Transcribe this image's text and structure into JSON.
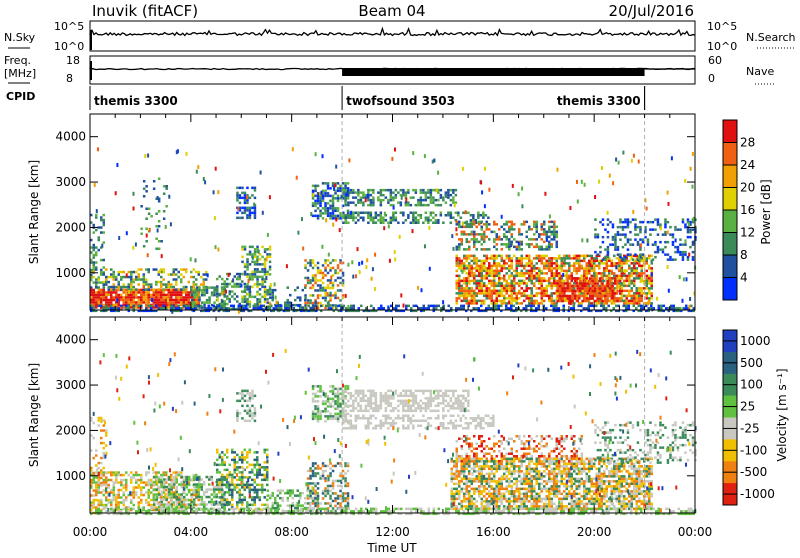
{
  "header": {
    "station": "Inuvik (fitACF)",
    "beam": "Beam 04",
    "date": "20/Jul/2016"
  },
  "top_panels": {
    "nsky_label": "N.Sky",
    "nsky_ticks": [
      "10^5",
      "10^0"
    ],
    "nsearch_label": "N.Search",
    "freq_label_1": "Freq.",
    "freq_label_2": "[MHz]",
    "freq_ticks": [
      "18",
      "8"
    ],
    "nave_label": "Nave",
    "nave_ticks": [
      "60",
      "0"
    ],
    "cpid_label": "CPID"
  },
  "cpid_segments": [
    {
      "label": "themis 3300",
      "start_hr": 0,
      "end_hr": 10
    },
    {
      "label": "twofsound 3503",
      "start_hr": 10,
      "end_hr": 22
    },
    {
      "label": "themis 3300",
      "start_hr": 22,
      "end_hr": 24
    }
  ],
  "chart_data": [
    {
      "type": "heatmap",
      "panel": "power",
      "ylabel": "Slant Range [km]",
      "ylim": [
        180,
        4500
      ],
      "yticks": [
        1000,
        2000,
        3000,
        4000
      ],
      "xlim": [
        0,
        24
      ],
      "colorbar_label": "Power [dB]",
      "colorbar_ticks": [
        "4",
        "8",
        "12",
        "16",
        "20",
        "24",
        "28"
      ],
      "colorbar_colors": [
        "#0030ff",
        "#2050a0",
        "#3a8a5a",
        "#5ab040",
        "#e0d000",
        "#f0a000",
        "#f06010",
        "#e01010"
      ]
    },
    {
      "type": "heatmap",
      "panel": "velocity",
      "ylabel": "Slant Range [km]",
      "ylim": [
        180,
        4500
      ],
      "yticks": [
        1000,
        2000,
        3000,
        4000
      ],
      "xlim": [
        0,
        24
      ],
      "xticks": [
        "00:00",
        "04:00",
        "08:00",
        "12:00",
        "16:00",
        "20:00",
        "00:00"
      ],
      "xlabel": "Time UT",
      "colorbar_label": "Velocity [m s⁻¹]",
      "colorbar_ticks": [
        "1000",
        "500",
        "100",
        "25",
        "-25",
        "-100",
        "-500",
        "-1000"
      ],
      "colorbar_colors": [
        "#2040c0",
        "#2a6080",
        "#3a8a5a",
        "#60c040",
        "#c8c8c0",
        "#f0c000",
        "#f08010",
        "#e02010"
      ]
    }
  ],
  "regions": {
    "power": [
      {
        "t0": 0.0,
        "t1": 0.5,
        "r0": 180,
        "r1": 2300,
        "cols": [
          "#2050a0",
          "#3a8a5a",
          "#5ab040"
        ],
        "d": 0.35
      },
      {
        "t0": 0.0,
        "t1": 4.3,
        "r0": 250,
        "r1": 650,
        "cols": [
          "#e01010",
          "#f06010",
          "#f0a000",
          "#e01010"
        ],
        "d": 0.9
      },
      {
        "t0": 0.0,
        "t1": 4.6,
        "r0": 650,
        "r1": 1100,
        "cols": [
          "#e0d000",
          "#5ab040",
          "#2050a0",
          "#3a8a5a",
          "#f0a000"
        ],
        "d": 0.45
      },
      {
        "t0": 4.0,
        "t1": 5.3,
        "r0": 200,
        "r1": 700,
        "cols": [
          "#2050a0",
          "#3a8a5a",
          "#5ab040"
        ],
        "d": 0.6
      },
      {
        "t0": 2.0,
        "t1": 3.0,
        "r0": 1500,
        "r1": 3100,
        "cols": [
          "#3a8a5a",
          "#5ab040",
          "#2050a0"
        ],
        "d": 0.12
      },
      {
        "t0": 5.0,
        "t1": 6.3,
        "r0": 200,
        "r1": 1000,
        "cols": [
          "#3a8a5a",
          "#2050a0",
          "#5ab040"
        ],
        "d": 0.35
      },
      {
        "t0": 5.8,
        "t1": 6.5,
        "r0": 2200,
        "r1": 2900,
        "cols": [
          "#2050a0",
          "#3a8a5a",
          "#0030ff"
        ],
        "d": 0.55
      },
      {
        "t0": 6.0,
        "t1": 7.1,
        "r0": 200,
        "r1": 1600,
        "cols": [
          "#3a8a5a",
          "#e0d000",
          "#5ab040",
          "#2050a0"
        ],
        "d": 0.5
      },
      {
        "t0": 7.0,
        "t1": 8.5,
        "r0": 200,
        "r1": 700,
        "cols": [
          "#2050a0",
          "#3a8a5a"
        ],
        "d": 0.3
      },
      {
        "t0": 8.5,
        "t1": 10.0,
        "r0": 200,
        "r1": 1300,
        "cols": [
          "#f06010",
          "#e0d000",
          "#2050a0",
          "#3a8a5a"
        ],
        "d": 0.45
      },
      {
        "t0": 8.8,
        "t1": 10.2,
        "r0": 2200,
        "r1": 3000,
        "cols": [
          "#2050a0",
          "#3a8a5a",
          "#5ab040",
          "#0030ff"
        ],
        "d": 0.6
      },
      {
        "t0": 10.0,
        "t1": 14.5,
        "r0": 2500,
        "r1": 2850,
        "cols": [
          "#3a8a5a",
          "#2050a0",
          "#5ab040"
        ],
        "d": 0.55
      },
      {
        "t0": 10.0,
        "t1": 15.8,
        "r0": 2100,
        "r1": 2350,
        "cols": [
          "#2050a0",
          "#3a8a5a",
          "#5ab040"
        ],
        "d": 0.5
      },
      {
        "t0": 14.5,
        "t1": 18.5,
        "r0": 1500,
        "r1": 2150,
        "cols": [
          "#3a8a5a",
          "#2050a0",
          "#5ab040",
          "#f06010"
        ],
        "d": 0.4
      },
      {
        "t0": 14.5,
        "t1": 22.3,
        "r0": 300,
        "r1": 1400,
        "cols": [
          "#f06010",
          "#f0a000",
          "#e0d000",
          "#3a8a5a",
          "#e01010"
        ],
        "d": 0.72
      },
      {
        "t0": 18.5,
        "t1": 21.0,
        "r0": 400,
        "r1": 900,
        "cols": [
          "#e01010",
          "#f06010"
        ],
        "d": 0.65
      },
      {
        "t0": 20.0,
        "t1": 24.0,
        "r0": 1300,
        "r1": 2200,
        "cols": [
          "#2050a0",
          "#3a8a5a",
          "#0030ff"
        ],
        "d": 0.3
      },
      {
        "t0": 0.0,
        "t1": 24.0,
        "r0": 180,
        "r1": 300,
        "cols": [
          "#2050a0",
          "#3a8a5a",
          "#0030ff"
        ],
        "d": 0.55
      }
    ],
    "velocity": [
      {
        "t0": 0.0,
        "t1": 0.6,
        "r0": 180,
        "r1": 2300,
        "cols": [
          "#f08010",
          "#f0c000",
          "#c8c8c0"
        ],
        "d": 0.3
      },
      {
        "t0": 0.0,
        "t1": 4.3,
        "r0": 250,
        "r1": 1100,
        "cols": [
          "#f08010",
          "#f0c000",
          "#c8c8c0",
          "#60c040"
        ],
        "d": 0.55
      },
      {
        "t0": 2.5,
        "t1": 5.5,
        "r0": 200,
        "r1": 1000,
        "cols": [
          "#c8c8c0",
          "#3a8a5a",
          "#60c040"
        ],
        "d": 0.5
      },
      {
        "t0": 5.0,
        "t1": 7.0,
        "r0": 200,
        "r1": 1600,
        "cols": [
          "#3a8a5a",
          "#2a6080",
          "#60c040",
          "#f0c000"
        ],
        "d": 0.45
      },
      {
        "t0": 5.8,
        "t1": 6.5,
        "r0": 2200,
        "r1": 2900,
        "cols": [
          "#c8c8c0",
          "#3a8a5a"
        ],
        "d": 0.45
      },
      {
        "t0": 7.0,
        "t1": 9.0,
        "r0": 200,
        "r1": 700,
        "cols": [
          "#c8c8c0",
          "#60c040",
          "#3a8a5a"
        ],
        "d": 0.4
      },
      {
        "t0": 8.6,
        "t1": 10.2,
        "r0": 200,
        "r1": 1300,
        "cols": [
          "#3a8a5a",
          "#2a6080",
          "#c8c8c0",
          "#f08010"
        ],
        "d": 0.45
      },
      {
        "t0": 8.8,
        "t1": 10.2,
        "r0": 2200,
        "r1": 3000,
        "cols": [
          "#c8c8c0",
          "#3a8a5a",
          "#60c040"
        ],
        "d": 0.55
      },
      {
        "t0": 10.0,
        "t1": 15.0,
        "r0": 2450,
        "r1": 2900,
        "cols": [
          "#c8c8c0"
        ],
        "d": 0.6
      },
      {
        "t0": 10.0,
        "t1": 16.0,
        "r0": 2050,
        "r1": 2350,
        "cols": [
          "#c8c8c0"
        ],
        "d": 0.5
      },
      {
        "t0": 14.5,
        "t1": 19.5,
        "r0": 1300,
        "r1": 1900,
        "cols": [
          "#e02010",
          "#f08010",
          "#c8c8c0"
        ],
        "d": 0.4
      },
      {
        "t0": 14.3,
        "t1": 22.3,
        "r0": 250,
        "r1": 1400,
        "cols": [
          "#f08010",
          "#c8c8c0",
          "#f0c000",
          "#3a8a5a"
        ],
        "d": 0.72
      },
      {
        "t0": 20.0,
        "t1": 24.0,
        "r0": 1300,
        "r1": 2200,
        "cols": [
          "#c8c8c0",
          "#3a8a5a"
        ],
        "d": 0.3
      },
      {
        "t0": 0.0,
        "t1": 24.0,
        "r0": 180,
        "r1": 300,
        "cols": [
          "#60c040",
          "#c8c8c0"
        ],
        "d": 0.6
      }
    ]
  }
}
